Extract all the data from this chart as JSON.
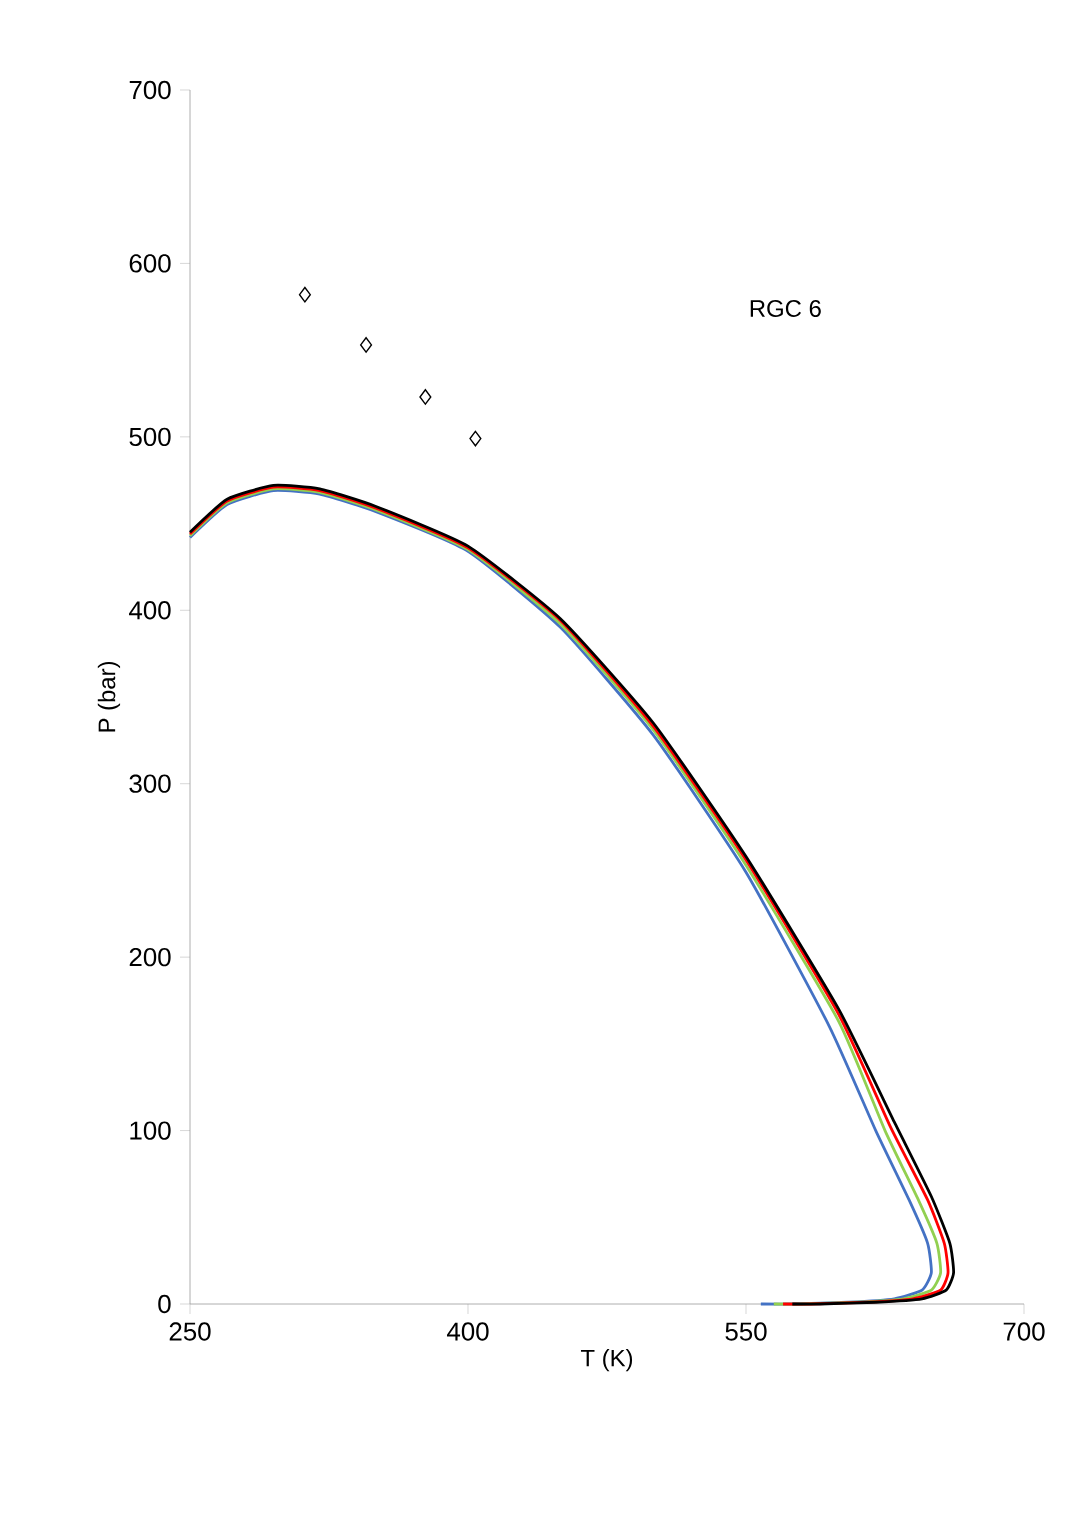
{
  "chart_data": {
    "type": "line",
    "xlabel": "T (K)",
    "ylabel": "P (bar)",
    "xlim": [
      250,
      700
    ],
    "xticks": [
      250,
      400,
      550,
      700
    ],
    "ylim": [
      0,
      700
    ],
    "yticks": [
      0,
      100,
      200,
      300,
      400,
      500,
      600,
      700
    ],
    "grid": false,
    "marker": "none",
    "line_style": "solid",
    "annotations": [
      "RGC 6"
    ],
    "series": [
      {
        "color": "#4472c4",
        "x": [
          250,
          270,
          295,
          320,
          350,
          400,
          450,
          500,
          550,
          595,
          620,
          638,
          648,
          650,
          645,
          630,
          605,
          575,
          558
        ],
        "values": [
          442,
          461,
          469,
          467,
          457,
          434,
          390,
          328,
          249,
          160,
          100,
          60,
          35,
          18,
          8,
          3,
          1,
          0,
          0
        ]
      },
      {
        "color": "#92d050",
        "x": [
          250,
          270,
          295,
          320,
          350,
          400,
          450,
          500,
          550,
          600,
          625,
          643,
          653,
          655,
          650,
          635,
          610,
          580,
          565
        ],
        "values": [
          443,
          462,
          470,
          468,
          458,
          435,
          392,
          331,
          253,
          163,
          100,
          60,
          35,
          18,
          8,
          3,
          1,
          0,
          0
        ]
      },
      {
        "color": "#ff0000",
        "x": [
          250,
          270,
          295,
          320,
          350,
          400,
          450,
          500,
          550,
          600,
          628,
          648,
          657,
          659,
          655,
          640,
          615,
          585,
          570
        ],
        "values": [
          444,
          463,
          471,
          469,
          459,
          436,
          394,
          333,
          256,
          167,
          102,
          60,
          35,
          18,
          8,
          3,
          1,
          0,
          0
        ]
      },
      {
        "color": "#000000",
        "x": [
          250,
          270,
          295,
          320,
          350,
          400,
          450,
          500,
          550,
          600,
          630,
          650,
          660,
          662,
          658,
          645,
          620,
          590,
          575
        ],
        "values": [
          445,
          464,
          472,
          470,
          460,
          437,
          395,
          335,
          258,
          170,
          105,
          62,
          35,
          18,
          8,
          3,
          1,
          0,
          0
        ]
      },
      {
        "type": "scatter",
        "marker": "diamond",
        "color": "#000000",
        "x": [
          312,
          345,
          377,
          404
        ],
        "values": [
          582,
          553,
          523,
          499
        ]
      }
    ]
  }
}
